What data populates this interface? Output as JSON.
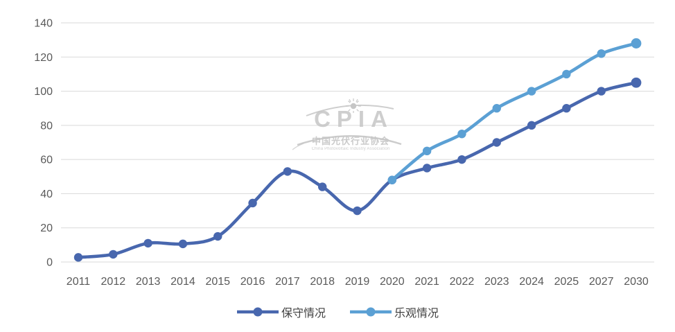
{
  "chart_data": {
    "type": "line",
    "title": "",
    "xlabel": "",
    "ylabel": "",
    "categories": [
      "2011",
      "2012",
      "2013",
      "2014",
      "2015",
      "2016",
      "2017",
      "2018",
      "2019",
      "2020",
      "2021",
      "2022",
      "2023",
      "2024",
      "2025",
      "2027",
      "2030"
    ],
    "series": [
      {
        "name": "保守情况",
        "color": "#4867AE",
        "values": [
          2.7,
          4.5,
          11,
          10.6,
          15,
          34.5,
          53,
          44,
          30,
          48,
          55,
          60,
          70,
          80,
          90,
          100,
          105
        ]
      },
      {
        "name": "乐观情况",
        "color": "#5BA0D4",
        "values": [
          null,
          null,
          null,
          null,
          null,
          null,
          null,
          null,
          null,
          48,
          65,
          75,
          90,
          100,
          110,
          122,
          128
        ]
      }
    ],
    "ylim": [
      0,
      140
    ],
    "y_ticks": [
      "0",
      "20",
      "40",
      "60",
      "80",
      "100",
      "120",
      "140"
    ],
    "grid": true,
    "smooth": true,
    "legend_position": "bottom"
  },
  "watermark": {
    "logo": "CPIA",
    "cn": "中国光伏行业协会",
    "en": "China Photovoltaic Industry Association"
  },
  "colors": {
    "gridline": "#D9D9D9",
    "tick_text": "#595959",
    "legend_text": "#404040",
    "watermark": "#C6C6C6"
  }
}
